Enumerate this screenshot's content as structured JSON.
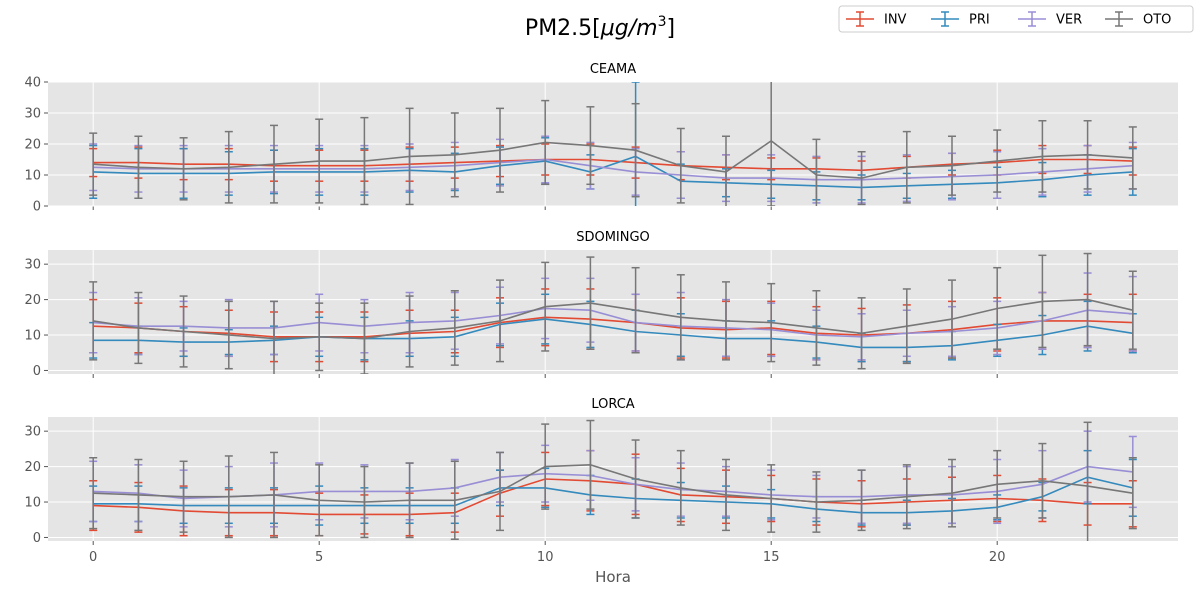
{
  "title": "PM2.5[μg/m³]",
  "title_parts": {
    "base": "PM2.5[",
    "unit": "μg/m",
    "sup": "3",
    "end": "]"
  },
  "chart_data": {
    "type": "line",
    "style": "ggplot",
    "title": "PM2.5[μg/m³]",
    "xlabel": "Hora",
    "xlim": [
      -1,
      24
    ],
    "xticks": [
      0,
      5,
      10,
      15,
      20
    ],
    "legend": {
      "placement": "top-right",
      "entries": [
        "INV",
        "PRI",
        "VER",
        "OTO"
      ]
    },
    "colors": {
      "INV": "#E24A33",
      "PRI": "#348ABD",
      "VER": "#988ED5",
      "OTO": "#777777"
    },
    "x": [
      0,
      1,
      2,
      3,
      4,
      5,
      6,
      7,
      8,
      9,
      10,
      11,
      12,
      13,
      14,
      15,
      16,
      17,
      18,
      19,
      20,
      21,
      22,
      23
    ],
    "panels": [
      {
        "title": "CEAMA",
        "ylim": [
          0,
          40
        ],
        "yticks": [
          0,
          10,
          20,
          30,
          40
        ],
        "series": [
          {
            "name": "INV",
            "values": [
              14,
              14,
              13.5,
              13.5,
              13,
              13,
              13,
              13.5,
              14,
              14.5,
              15,
              15,
              14,
              13,
              12.5,
              12,
              12,
              11.5,
              12.5,
              13.5,
              14,
              15,
              15,
              14.5
            ],
            "err": [
              4.5,
              5,
              5,
              5,
              5,
              5,
              5,
              5.5,
              5,
              5,
              5,
              5,
              5,
              4.5,
              4,
              3.5,
              3.5,
              3,
              3.5,
              3.5,
              4,
              4.5,
              4.5,
              4.5
            ]
          },
          {
            "name": "PRI",
            "values": [
              11,
              10.5,
              10.5,
              10.5,
              11,
              11,
              11,
              11.5,
              11,
              13,
              14.5,
              11,
              16,
              8,
              7.5,
              7,
              6.5,
              6,
              6.5,
              7,
              7.5,
              8.5,
              10,
              11
            ],
            "err": [
              8.5,
              8,
              8,
              7,
              7,
              7.5,
              7.5,
              7,
              6,
              6,
              7.5,
              5.5,
              24,
              5.5,
              4.5,
              4.5,
              4.5,
              4,
              4,
              4.5,
              5,
              5.5,
              6.5,
              7.5
            ]
          },
          {
            "name": "VER",
            "values": [
              12.5,
              12,
              12,
              12,
              12,
              12,
              12,
              12.5,
              13,
              14,
              15,
              13,
              11,
              10,
              9,
              9,
              8.5,
              8.5,
              9,
              9.5,
              10,
              11,
              12,
              13
            ]
          },
          {
            "name": "OTO",
            "values": [
              13.5,
              12.5,
              12,
              12.5,
              13.5,
              14.5,
              14.5,
              16,
              16.5,
              18,
              20.5,
              19.5,
              18,
              13,
              11,
              21,
              10,
              9,
              12.5,
              13,
              14.5,
              16,
              16.5,
              15.5
            ],
            "err": [
              10,
              10,
              10,
              11.5,
              12.5,
              13.5,
              14,
              15.5,
              13.5,
              13.5,
              13.5,
              12.5,
              15,
              12,
              11.5,
              21,
              11.5,
              8.5,
              11.5,
              9.5,
              10,
              11.5,
              11,
              10
            ]
          }
        ]
      },
      {
        "title": "SDOMINGO",
        "ylim": [
          -1,
          34
        ],
        "yticks": [
          0,
          10,
          20,
          30
        ],
        "series": [
          {
            "name": "INV",
            "values": [
              12.5,
              12,
              11,
              10.5,
              9.5,
              9.5,
              9.5,
              10.5,
              11,
              13.5,
              15,
              14.5,
              13.5,
              12,
              11.5,
              12,
              10.5,
              10,
              10.5,
              11.5,
              13,
              14,
              14,
              13.5
            ],
            "err": [
              7.5,
              7,
              7,
              6.5,
              7,
              7,
              7,
              6.5,
              6,
              7,
              8,
              8.5,
              8,
              8.5,
              8,
              7.5,
              7.5,
              7.5,
              8,
              8,
              7.5,
              8,
              7.5,
              8
            ]
          },
          {
            "name": "PRI",
            "values": [
              8.5,
              8.5,
              8,
              8,
              8.5,
              9.5,
              9,
              9,
              9.5,
              13,
              14.5,
              13,
              11,
              10,
              9,
              9,
              8,
              6.5,
              6.5,
              7,
              8.5,
              10,
              12.5,
              10.5
            ],
            "err": [
              5,
              4,
              4,
              3.5,
              4,
              5.5,
              6,
              5,
              5.5,
              6,
              7,
              6.5,
              6,
              6,
              5,
              5,
              4.5,
              4,
              4,
              4,
              4.5,
              5.5,
              7,
              5.5
            ]
          },
          {
            "name": "VER",
            "values": [
              13.5,
              12.5,
              12.5,
              12,
              12,
              13.5,
              12.5,
              13.5,
              14,
              15.5,
              17.5,
              17,
              13.5,
              12.5,
              12,
              11.5,
              10,
              9.5,
              10.5,
              11,
              12,
              14,
              17,
              16
            ],
            "err": [
              8.5,
              8,
              7,
              8,
              7.5,
              8,
              7.5,
              8.5,
              8,
              8,
              8.5,
              9,
              8,
              9.5,
              8,
              7.5,
              7,
              6.5,
              6.5,
              7,
              7.5,
              8,
              10.5,
              10.5
            ]
          },
          {
            "name": "OTO",
            "values": [
              14,
              12,
              11,
              10,
              9,
              9.5,
              9,
              11,
              12,
              14,
              18,
              19,
              17,
              15,
              14,
              13.5,
              12,
              10.5,
              12.5,
              14.5,
              17.5,
              19.5,
              20,
              17
            ],
            "err": [
              11,
              10,
              10,
              9.5,
              10.5,
              9.5,
              10,
              10,
              10.5,
              11.5,
              12.5,
              13,
              12,
              12,
              11,
              11,
              10.5,
              10,
              10.5,
              11,
              11.5,
              13,
              13,
              11
            ]
          }
        ]
      },
      {
        "title": "LORCA",
        "ylim": [
          -1,
          34
        ],
        "yticks": [
          0,
          10,
          20,
          30
        ],
        "series": [
          {
            "name": "INV",
            "values": [
              9,
              8.5,
              7.5,
              7,
              7,
              6.5,
              6.5,
              6.5,
              7,
              12.5,
              16.5,
              16,
              15,
              12,
              11.5,
              11,
              10,
              9.5,
              10,
              10.5,
              11,
              10.5,
              9.5,
              9.5
            ],
            "err": [
              7,
              7,
              7,
              6.5,
              6.5,
              6,
              5.5,
              6,
              5.5,
              6.5,
              7.5,
              8.5,
              8.5,
              7.5,
              7.5,
              6.5,
              6.5,
              6.5,
              6.5,
              6.5,
              6.5,
              6,
              6,
              6.5
            ]
          },
          {
            "name": "PRI",
            "values": [
              9.5,
              9.5,
              9,
              9,
              9,
              9,
              9,
              9,
              9,
              14,
              14,
              12,
              11,
              10.5,
              10,
              9.5,
              8,
              7,
              7,
              7.5,
              8.5,
              11.5,
              17,
              14
            ],
            "err": [
              5,
              5,
              5,
              5,
              5,
              5.5,
              5,
              5,
              5,
              5,
              5.5,
              5.5,
              5.5,
              5,
              4.5,
              4,
              3.5,
              3.5,
              3.5,
              3.5,
              3.5,
              4,
              7.5,
              8
            ]
          },
          {
            "name": "VER",
            "values": [
              13,
              12.5,
              11,
              11.5,
              12,
              13,
              13,
              13,
              14,
              17,
              18,
              17.5,
              15,
              13.5,
              13,
              12,
              11.5,
              11.5,
              12,
              12,
              13,
              15,
              20,
              18.5
            ],
            "err": [
              8.5,
              8,
              8,
              8.5,
              9,
              8,
              7.5,
              8,
              8,
              7,
              8,
              7,
              7.5,
              7.5,
              7,
              7,
              6,
              7.5,
              8,
              8,
              9,
              9.5,
              10,
              10
            ]
          },
          {
            "name": "OTO",
            "values": [
              12.5,
              12,
              11.5,
              11.5,
              12,
              10.5,
              10,
              10.5,
              10.5,
              13,
              20,
              20.5,
              16.5,
              14,
              12,
              11,
              10,
              10.5,
              11.5,
              12.5,
              15,
              16,
              14.5,
              12.5
            ],
            "err": [
              10,
              10,
              10,
              11.5,
              12,
              10,
              10,
              10.5,
              11,
              11,
              12,
              12.5,
              11,
              10.5,
              10,
              9.5,
              8.5,
              8.5,
              9,
              9.5,
              9.5,
              10.5,
              18,
              10
            ]
          }
        ]
      }
    ]
  }
}
